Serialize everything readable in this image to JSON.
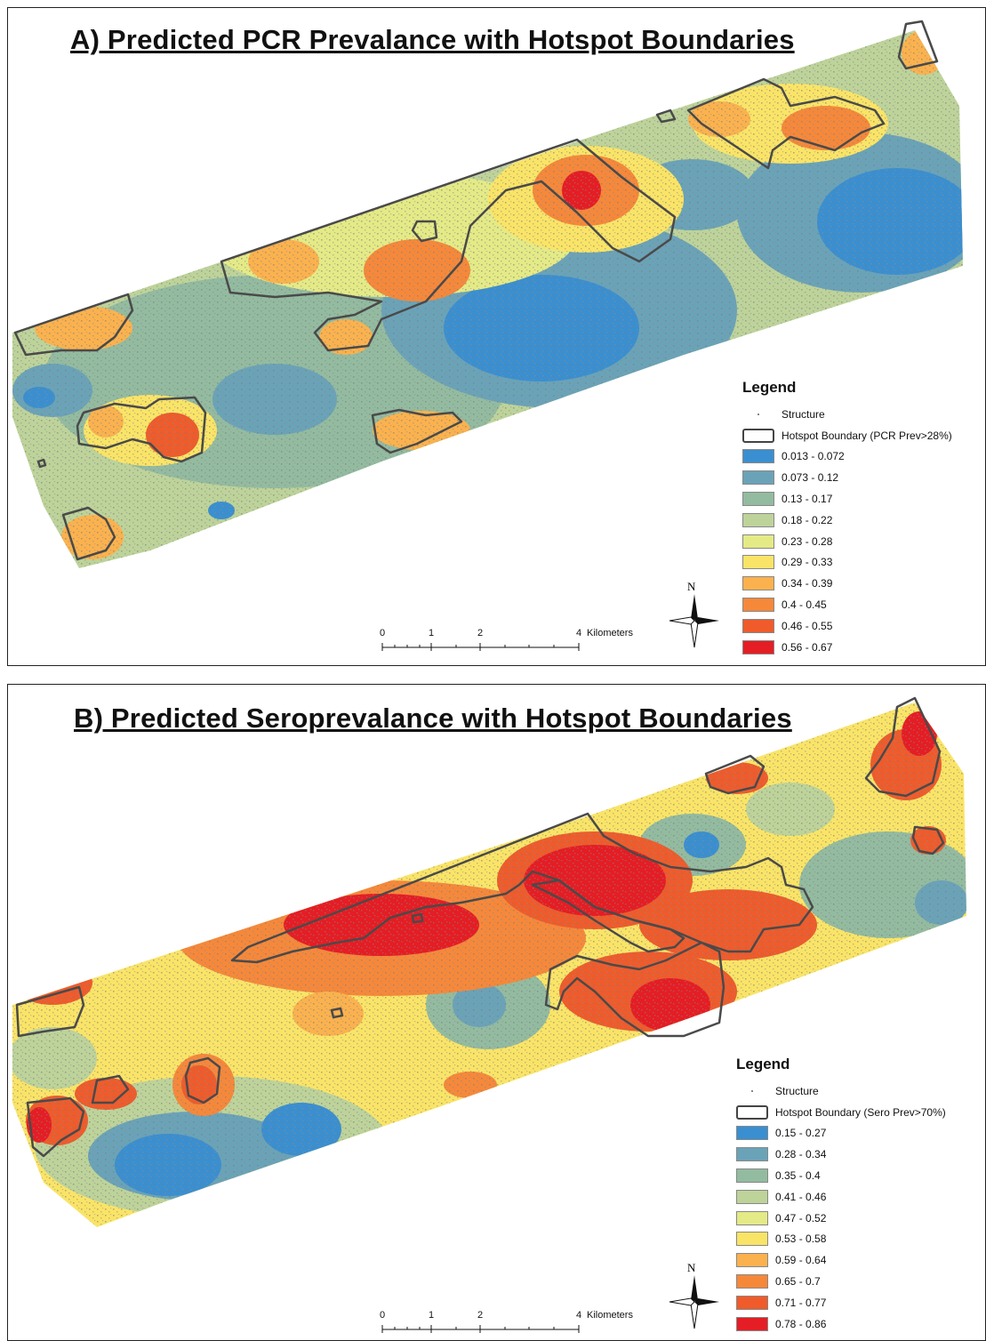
{
  "panels": [
    {
      "title": "A) Predicted PCR Prevalance with Hotspot Boundaries",
      "legend": {
        "title": "Legend",
        "structure_label": "Structure",
        "boundary_label": "Hotspot Boundary (PCR Prev>28%)",
        "classes": [
          {
            "label": "0.013 - 0.072",
            "color": "#3a8fd0"
          },
          {
            "label": "0.073 - 0.12",
            "color": "#6aa3b8"
          },
          {
            "label": "0.13 - 0.17",
            "color": "#93bba0"
          },
          {
            "label": "0.18 - 0.22",
            "color": "#bdd39a"
          },
          {
            "label": "0.23 - 0.28",
            "color": "#e4ea86"
          },
          {
            "label": "0.29 - 0.33",
            "color": "#fae467"
          },
          {
            "label": "0.34 - 0.39",
            "color": "#fbb24e"
          },
          {
            "label": "0.4 - 0.45",
            "color": "#f6883a"
          },
          {
            "label": "0.46 - 0.55",
            "color": "#ef5b2b"
          },
          {
            "label": "0.56 - 0.67",
            "color": "#e51d24"
          }
        ]
      },
      "scale": {
        "ticks": [
          "0",
          "1",
          "2",
          "4"
        ],
        "unit": "Kilometers"
      },
      "north_label": "N"
    },
    {
      "title": "B) Predicted Seroprevalance with Hotspot Boundaries",
      "legend": {
        "title": "Legend",
        "structure_label": "Structure",
        "boundary_label": "Hotspot Boundary (Sero Prev>70%)",
        "classes": [
          {
            "label": "0.15 - 0.27",
            "color": "#3a8fd0"
          },
          {
            "label": "0.28 - 0.34",
            "color": "#6aa3b8"
          },
          {
            "label": "0.35 - 0.4",
            "color": "#93bba0"
          },
          {
            "label": "0.41 - 0.46",
            "color": "#bdd39a"
          },
          {
            "label": "0.47 - 0.52",
            "color": "#e4ea86"
          },
          {
            "label": "0.53 - 0.58",
            "color": "#fae467"
          },
          {
            "label": "0.59 - 0.64",
            "color": "#fbb24e"
          },
          {
            "label": "0.65 - 0.7",
            "color": "#f6883a"
          },
          {
            "label": "0.71 - 0.77",
            "color": "#ef5b2b"
          },
          {
            "label": "0.78 - 0.86",
            "color": "#e51d24"
          }
        ]
      },
      "scale": {
        "ticks": [
          "0",
          "1",
          "2",
          "4"
        ],
        "unit": "Kilometers"
      },
      "north_label": "N"
    }
  ]
}
